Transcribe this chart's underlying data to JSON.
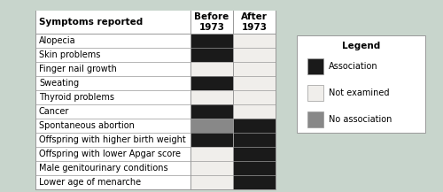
{
  "symptoms": [
    "Alopecia",
    "Skin problems",
    "Finger nail growth",
    "Sweating",
    "Thyroid problems",
    "Cancer",
    "Spontaneous abortion",
    "Offspring with higher birth weight",
    "Offspring with lower Apgar score",
    "Male genitourinary conditions",
    "Lower age of menarche"
  ],
  "before_1973": [
    "black",
    "black",
    "white",
    "black",
    "white",
    "black",
    "gray",
    "black",
    "white",
    "white",
    "white"
  ],
  "after_1973": [
    "white",
    "white",
    "white",
    "white",
    "white",
    "white",
    "black",
    "black",
    "black",
    "black",
    "black"
  ],
  "color_map": {
    "black": "#1a1a1a",
    "white": "#f0eeeb",
    "gray": "#888888"
  },
  "legend_items": [
    {
      "label": "Association",
      "color": "#1a1a1a"
    },
    {
      "label": "Not examined",
      "color": "#f0eeeb"
    },
    {
      "label": "No association",
      "color": "#888888"
    }
  ],
  "header_col0": "Symptoms reported",
  "header_col1": "Before\n1973",
  "header_col2": "After\n1973",
  "legend_title": "Legend",
  "bg_color": "#c8d5cc",
  "border_color": "#999999",
  "text_fontsize": 7.0,
  "header_fontsize": 7.5
}
